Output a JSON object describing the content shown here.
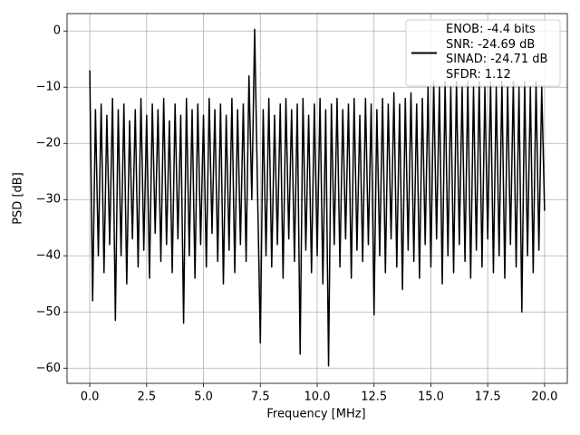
{
  "chart_data": {
    "type": "line",
    "xlabel": "Frequency [MHz]",
    "ylabel": "PSD [dB]",
    "x": [
      0,
      0.125,
      0.25,
      0.375,
      0.5,
      0.625,
      0.75,
      0.875,
      1,
      1.125,
      1.25,
      1.375,
      1.5,
      1.625,
      1.75,
      1.875,
      2,
      2.125,
      2.25,
      2.375,
      2.5,
      2.625,
      2.75,
      2.875,
      3,
      3.125,
      3.25,
      3.375,
      3.5,
      3.625,
      3.75,
      3.875,
      4,
      4.125,
      4.25,
      4.375,
      4.5,
      4.625,
      4.75,
      4.875,
      5,
      5.125,
      5.25,
      5.375,
      5.5,
      5.625,
      5.75,
      5.875,
      6,
      6.125,
      6.25,
      6.375,
      6.5,
      6.625,
      6.75,
      6.875,
      7,
      7.125,
      7.25,
      7.375,
      7.5,
      7.625,
      7.75,
      7.875,
      8,
      8.125,
      8.25,
      8.375,
      8.5,
      8.625,
      8.75,
      8.875,
      9,
      9.125,
      9.25,
      9.375,
      9.5,
      9.625,
      9.75,
      9.875,
      10,
      10.125,
      10.25,
      10.375,
      10.5,
      10.625,
      10.75,
      10.875,
      11,
      11.125,
      11.25,
      11.375,
      11.5,
      11.625,
      11.75,
      11.875,
      12,
      12.125,
      12.25,
      12.375,
      12.5,
      12.625,
      12.75,
      12.875,
      13,
      13.125,
      13.25,
      13.375,
      13.5,
      13.625,
      13.75,
      13.875,
      14,
      14.125,
      14.25,
      14.375,
      14.5,
      14.625,
      14.75,
      14.875,
      15,
      15.125,
      15.25,
      15.375,
      15.5,
      15.625,
      15.75,
      15.875,
      16,
      16.125,
      16.25,
      16.375,
      16.5,
      16.625,
      16.75,
      16.875,
      17,
      17.125,
      17.25,
      17.375,
      17.5,
      17.625,
      17.75,
      17.875,
      18,
      18.125,
      18.25,
      18.375,
      18.5,
      18.625,
      18.75,
      18.875,
      19,
      19.125,
      19.25,
      19.375,
      19.5,
      19.625,
      19.75,
      19.875,
      20
    ],
    "series": [
      {
        "name": "ENOB: -4.4 bits\nSNR: -24.69 dB\nSINAD: -24.71 dB\nSFDR: 1.12",
        "color": "#000000",
        "values": [
          -7,
          -48,
          -14,
          -40,
          -13,
          -43,
          -15,
          -38,
          -12,
          -51.5,
          -14,
          -40,
          -13,
          -45,
          -16,
          -37,
          -14,
          -42,
          -12,
          -39,
          -15,
          -44,
          -13,
          -36,
          -14,
          -41,
          -12,
          -38,
          -16,
          -43,
          -13,
          -37,
          -15,
          -52,
          -12,
          -40,
          -14,
          -44,
          -13,
          -38,
          -15,
          -42,
          -12,
          -36,
          -14,
          -41,
          -13,
          -45,
          -15,
          -39,
          -12,
          -43,
          -14,
          -38,
          -13,
          -41,
          -8,
          -30,
          0.3,
          -28,
          -55.5,
          -14,
          -40,
          -12,
          -42,
          -15,
          -38,
          -13,
          -44,
          -12,
          -37,
          -14,
          -41,
          -13,
          -57.5,
          -12,
          -39,
          -15,
          -43,
          -13,
          -40,
          -12,
          -45,
          -14,
          -59.6,
          -13,
          -38,
          -12,
          -42,
          -14,
          -37,
          -13,
          -44,
          -12,
          -39,
          -15,
          -41,
          -12,
          -38,
          -13,
          -50.5,
          -14,
          -40,
          -12,
          -43,
          -13,
          -37,
          -11,
          -42,
          -13,
          -46,
          -12,
          -39,
          -11,
          -41,
          -13,
          -44,
          -12,
          -38,
          -10,
          -42,
          -9,
          -37,
          -10,
          -45,
          -9,
          -40,
          -10,
          -43,
          -9,
          -38,
          -10,
          -41,
          -9,
          -44,
          -10,
          -39,
          -9,
          -42,
          -10,
          -37,
          -9,
          -43,
          -10,
          -40,
          -9,
          -44,
          -10,
          -38,
          -9,
          -42,
          -10,
          -50,
          -9,
          -40,
          -10,
          -43,
          -9,
          -39,
          -10,
          -32
        ]
      }
    ],
    "xlim": [
      -1,
      21
    ],
    "xticks": [
      {
        "value": 0,
        "label": "0.0"
      },
      2.5,
      {
        "value": 5,
        "label": "5.0"
      },
      7.5,
      {
        "value": 10,
        "label": "10.0"
      },
      12.5,
      {
        "value": 15,
        "label": "15.0"
      },
      17.5,
      {
        "value": 20,
        "label": "20.0"
      }
    ],
    "ylim": [
      -62.7,
      3.1
    ],
    "yticks": [
      {
        "value": -60,
        "label": "−60"
      },
      {
        "value": -50,
        "label": "−50"
      },
      {
        "value": -40,
        "label": "−40"
      },
      {
        "value": -30,
        "label": "−30"
      },
      {
        "value": -20,
        "label": "−20"
      },
      {
        "value": -10,
        "label": "−10"
      },
      0
    ],
    "grid": true,
    "legend": "upper right"
  }
}
